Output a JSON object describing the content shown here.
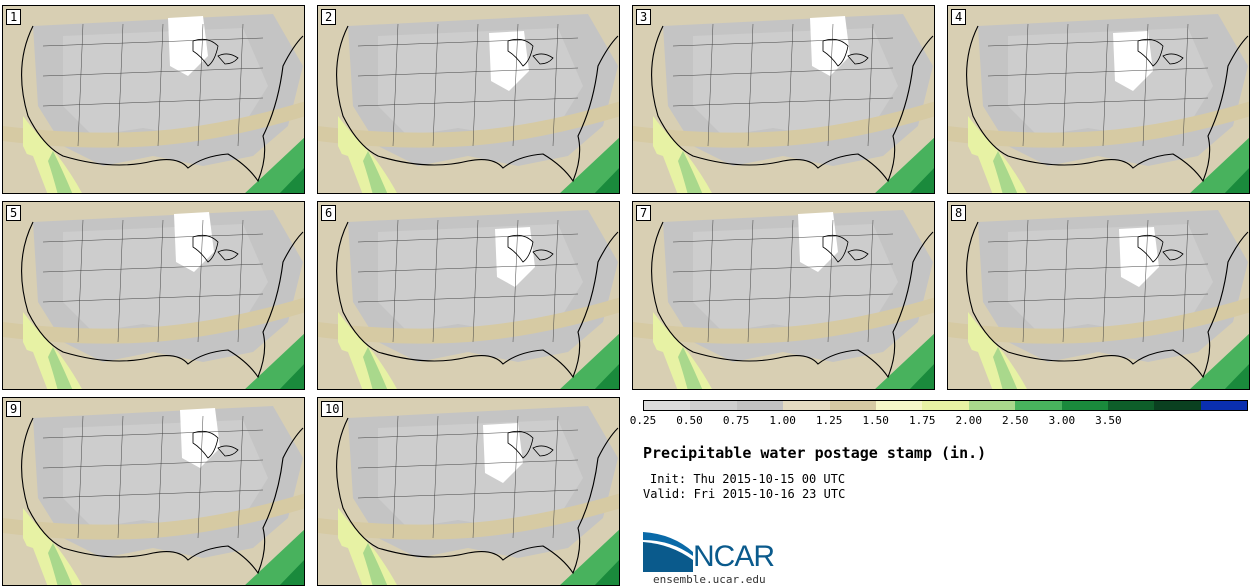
{
  "figure": {
    "title": "Precipitable water postage stamp (in.)",
    "init": "Init: Thu 2015-10-15 00 UTC",
    "valid": "Valid: Fri 2015-10-16 23 UTC"
  },
  "members": [
    {
      "label": "1"
    },
    {
      "label": "2"
    },
    {
      "label": "3"
    },
    {
      "label": "4"
    },
    {
      "label": "5"
    },
    {
      "label": "6"
    },
    {
      "label": "7"
    },
    {
      "label": "8"
    },
    {
      "label": "9"
    },
    {
      "label": "10"
    }
  ],
  "colorbar": {
    "tick_labels": [
      "0.25",
      "0.50",
      "0.75",
      "1.00",
      "1.25",
      "1.50",
      "1.75",
      "2.00",
      "2.50",
      "3.00",
      "3.50"
    ],
    "colors": [
      "#dcdcdc",
      "#cfcfcf",
      "#c2c2c2",
      "#e4dbc1",
      "#d6caa3",
      "#f6f7c8",
      "#e7f2a4",
      "#a9d88c",
      "#48b25d",
      "#1a8a3c",
      "#0e5e2a",
      "#0a4020",
      "#0a2fb0"
    ]
  },
  "branding": {
    "logo_text": "NCAR",
    "url": "ensemble.ucar.edu"
  }
}
